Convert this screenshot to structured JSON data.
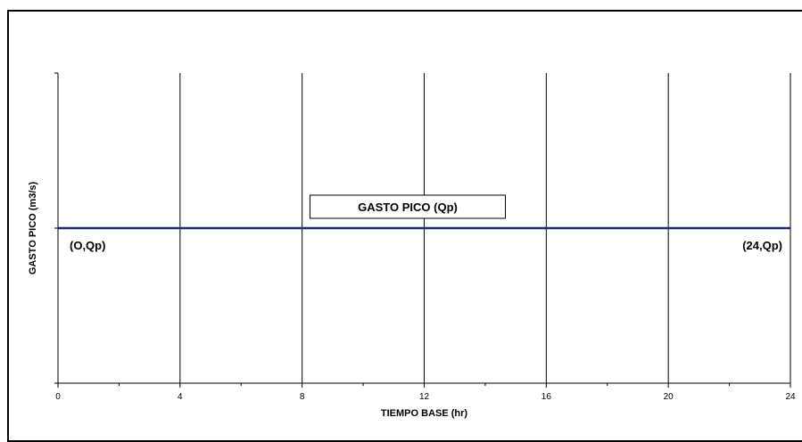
{
  "chart_data": {
    "type": "line",
    "title": "",
    "xlabel": "TIEMPO BASE (hr)",
    "ylabel": "GASTO PICO (m3/s)",
    "xlim": [
      0,
      24
    ],
    "ylim": [
      0,
      2
    ],
    "x_ticks": [
      0,
      4,
      8,
      12,
      16,
      20,
      24
    ],
    "x_minor_ticks": [
      2,
      6,
      10,
      14,
      18,
      22
    ],
    "y_ticks": [
      0,
      1,
      2
    ],
    "grid": "vertical",
    "series": [
      {
        "name": "GASTO PICO (Qp)",
        "color": "#1f2a7a",
        "x": [
          0,
          24
        ],
        "y": [
          1,
          1
        ]
      }
    ],
    "annotations": [
      {
        "text": "(O,Qp)",
        "x": 0,
        "y": 1
      },
      {
        "text": "(24,Qp)",
        "x": 24,
        "y": 1
      }
    ]
  }
}
